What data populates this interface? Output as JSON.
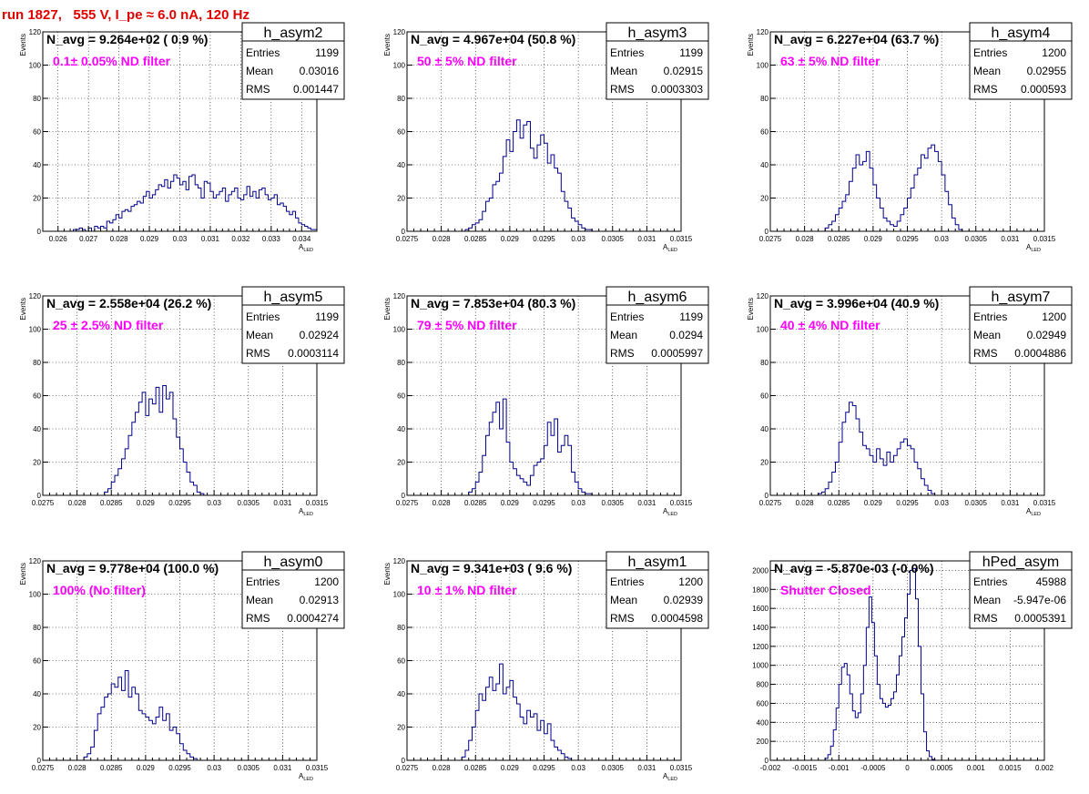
{
  "title": "run 1827,   555 V, I_pe ≈ 6.0 nA, 120 Hz",
  "colors": {
    "title": "#e00000",
    "histogram": "#00008b",
    "filter_text": "#ff00ff",
    "grid": "#000000"
  },
  "stat_labels": {
    "entries": "Entries",
    "mean": "Mean",
    "rms": "RMS"
  },
  "chart_data": [
    {
      "type": "bar",
      "name": "h_asym2",
      "navg_text": "N_avg = 9.264e+02 ( 0.9 %)",
      "filter_text": "0.1± 0.05% ND filter",
      "stats": {
        "entries": "1199",
        "mean": "0.03016",
        "rms": "0.001447"
      },
      "ylabel": "Events",
      "xlabel_main": "A",
      "xlabel_sub": "LED",
      "xlim": [
        0.0255,
        0.0345
      ],
      "ylim": [
        0,
        120
      ],
      "xticks": [
        0.026,
        0.027,
        0.028,
        0.029,
        0.03,
        0.031,
        0.032,
        0.033,
        0.034
      ],
      "xticklabels": [
        "0.026",
        "0.027",
        "0.028",
        "0.029",
        "0.03",
        "0.031",
        "0.032",
        "0.033",
        "0.034"
      ],
      "yticks": [
        0,
        20,
        40,
        60,
        80,
        100,
        120
      ],
      "yticklabels": [
        "0",
        "20",
        "40",
        "60",
        "80",
        "100",
        "120"
      ],
      "bins": {
        "start": 0.0265,
        "width": 0.0001,
        "values": [
          1,
          1,
          2,
          1,
          0,
          2,
          0,
          3,
          2,
          3,
          2,
          6,
          5,
          7,
          10,
          8,
          12,
          13,
          12,
          15,
          16,
          18,
          17,
          21,
          24,
          20,
          22,
          25,
          28,
          27,
          31,
          26,
          30,
          34,
          32,
          28,
          30,
          25,
          33,
          34,
          28,
          26,
          20,
          30,
          29,
          24,
          20,
          22,
          24,
          26,
          18,
          22,
          24,
          26,
          20,
          19,
          22,
          27,
          21,
          24,
          20,
          25,
          26,
          22,
          19,
          20,
          22,
          16,
          17,
          15,
          12,
          10,
          12,
          8,
          5,
          4,
          3,
          2,
          1,
          1
        ]
      }
    },
    {
      "type": "bar",
      "name": "h_asym3",
      "navg_text": "N_avg = 4.967e+04 (50.8 %)",
      "filter_text": "50 ± 5% ND filter",
      "stats": {
        "entries": "1199",
        "mean": "0.02915",
        "rms": "0.0003303"
      },
      "ylabel": "Events",
      "xlabel_main": "A",
      "xlabel_sub": "LED",
      "xlim": [
        0.0275,
        0.0315
      ],
      "ylim": [
        0,
        120
      ],
      "xticks": [
        0.0275,
        0.028,
        0.0285,
        0.029,
        0.0295,
        0.03,
        0.0305,
        0.031,
        0.0315
      ],
      "xticklabels": [
        "0.0275",
        "0.028",
        "0.0285",
        "0.029",
        "0.0295",
        "0.03",
        "0.0305",
        "0.031",
        "0.0315"
      ],
      "yticks": [
        0,
        20,
        40,
        60,
        80,
        100,
        120
      ],
      "yticklabels": [
        "0",
        "20",
        "40",
        "60",
        "80",
        "100",
        "120"
      ],
      "bins": {
        "start": 0.02835,
        "width": 5e-05,
        "values": [
          1,
          2,
          4,
          5,
          7,
          12,
          18,
          20,
          28,
          30,
          35,
          45,
          55,
          48,
          60,
          67,
          56,
          64,
          66,
          50,
          44,
          52,
          58,
          53,
          41,
          46,
          38,
          35,
          24,
          18,
          14,
          8,
          6,
          4,
          2,
          1,
          1
        ]
      }
    },
    {
      "type": "bar",
      "name": "h_asym4",
      "navg_text": "N_avg = 6.227e+04 (63.7 %)",
      "filter_text": "63 ± 5% ND filter",
      "stats": {
        "entries": "1200",
        "mean": "0.02955",
        "rms": "0.000593"
      },
      "ylabel": "Events",
      "xlabel_main": "A",
      "xlabel_sub": "LED",
      "xlim": [
        0.0275,
        0.0315
      ],
      "ylim": [
        0,
        120
      ],
      "xticks": [
        0.0275,
        0.028,
        0.0285,
        0.029,
        0.0295,
        0.03,
        0.0305,
        0.031,
        0.0315
      ],
      "xticklabels": [
        "0.0275",
        "0.028",
        "0.0285",
        "0.029",
        "0.0295",
        "0.03",
        "0.0305",
        "0.031",
        "0.0315"
      ],
      "yticks": [
        0,
        20,
        40,
        60,
        80,
        100,
        120
      ],
      "yticklabels": [
        "0",
        "20",
        "40",
        "60",
        "80",
        "100",
        "120"
      ],
      "bins": {
        "start": 0.0283,
        "width": 5e-05,
        "values": [
          2,
          4,
          6,
          10,
          14,
          18,
          22,
          30,
          38,
          46,
          40,
          42,
          48,
          38,
          28,
          20,
          14,
          8,
          6,
          4,
          3,
          6,
          10,
          14,
          20,
          26,
          34,
          38,
          46,
          44,
          50,
          52,
          48,
          42,
          34,
          24,
          16,
          8,
          4,
          1
        ]
      }
    },
    {
      "type": "bar",
      "name": "h_asym5",
      "navg_text": "N_avg = 2.558e+04 (26.2 %)",
      "filter_text": "25 ± 2.5% ND filter",
      "stats": {
        "entries": "1199",
        "mean": "0.02924",
        "rms": "0.0003114"
      },
      "ylabel": "Events",
      "xlabel_main": "A",
      "xlabel_sub": "LED",
      "xlim": [
        0.0275,
        0.0315
      ],
      "ylim": [
        0,
        120
      ],
      "xticks": [
        0.0275,
        0.028,
        0.0285,
        0.029,
        0.0295,
        0.03,
        0.0305,
        0.031,
        0.0315
      ],
      "xticklabels": [
        "0.0275",
        "0.028",
        "0.0285",
        "0.029",
        "0.0295",
        "0.03",
        "0.0305",
        "0.031",
        "0.0315"
      ],
      "yticks": [
        0,
        20,
        40,
        60,
        80,
        100,
        120
      ],
      "yticklabels": [
        "0",
        "20",
        "40",
        "60",
        "80",
        "100",
        "120"
      ],
      "bins": {
        "start": 0.0284,
        "width": 5e-05,
        "values": [
          2,
          4,
          8,
          12,
          16,
          22,
          28,
          36,
          44,
          50,
          56,
          62,
          48,
          58,
          55,
          65,
          50,
          66,
          58,
          62,
          46,
          35,
          28,
          20,
          14,
          8,
          6,
          2,
          1
        ]
      }
    },
    {
      "type": "bar",
      "name": "h_asym6",
      "navg_text": "N_avg = 7.853e+04 (80.3 %)",
      "filter_text": "79 ± 5% ND filter",
      "stats": {
        "entries": "1199",
        "mean": "0.0294",
        "rms": "0.0005997"
      },
      "ylabel": "Events",
      "xlabel_main": "A",
      "xlabel_sub": "LED",
      "xlim": [
        0.0275,
        0.0315
      ],
      "ylim": [
        0,
        120
      ],
      "xticks": [
        0.0275,
        0.028,
        0.0285,
        0.029,
        0.0295,
        0.03,
        0.0305,
        0.031,
        0.0315
      ],
      "xticklabels": [
        "0.0275",
        "0.028",
        "0.0285",
        "0.029",
        "0.0295",
        "0.03",
        "0.0305",
        "0.031",
        "0.0315"
      ],
      "yticks": [
        0,
        20,
        40,
        60,
        80,
        100,
        120
      ],
      "yticklabels": [
        "0",
        "20",
        "40",
        "60",
        "80",
        "100",
        "120"
      ],
      "bins": {
        "start": 0.0284,
        "width": 5e-05,
        "values": [
          2,
          4,
          8,
          14,
          24,
          36,
          44,
          50,
          56,
          40,
          58,
          32,
          20,
          16,
          12,
          10,
          8,
          6,
          12,
          18,
          20,
          22,
          30,
          44,
          36,
          46,
          26,
          30,
          36,
          30,
          14,
          8,
          4,
          2,
          1,
          1
        ]
      }
    },
    {
      "type": "bar",
      "name": "h_asym7",
      "navg_text": "N_avg = 3.996e+04 (40.9 %)",
      "filter_text": "40 ± 4% ND filter",
      "stats": {
        "entries": "1200",
        "mean": "0.02949",
        "rms": "0.0004886"
      },
      "ylabel": "Events",
      "xlabel_main": "A",
      "xlabel_sub": "LED",
      "xlim": [
        0.0275,
        0.0315
      ],
      "ylim": [
        0,
        120
      ],
      "xticks": [
        0.0275,
        0.028,
        0.0285,
        0.029,
        0.0295,
        0.03,
        0.0305,
        0.031,
        0.0315
      ],
      "xticklabels": [
        "0.0275",
        "0.028",
        "0.0285",
        "0.029",
        "0.0295",
        "0.03",
        "0.0305",
        "0.031",
        "0.0315"
      ],
      "yticks": [
        0,
        20,
        40,
        60,
        80,
        100,
        120
      ],
      "yticklabels": [
        "0",
        "20",
        "40",
        "60",
        "80",
        "100",
        "120"
      ],
      "bins": {
        "start": 0.0282,
        "width": 5e-05,
        "values": [
          1,
          2,
          4,
          8,
          14,
          20,
          32,
          44,
          50,
          56,
          54,
          46,
          38,
          30,
          28,
          24,
          20,
          28,
          22,
          18,
          26,
          20,
          24,
          28,
          32,
          34,
          30,
          28,
          20,
          16,
          10,
          6,
          3,
          1
        ]
      }
    },
    {
      "type": "bar",
      "name": "h_asym0",
      "navg_text": "N_avg = 9.778e+04 (100.0 %)",
      "filter_text": "100% (No filter)",
      "stats": {
        "entries": "1200",
        "mean": "0.02913",
        "rms": "0.0004274"
      },
      "ylabel": "Events",
      "xlabel_main": "A",
      "xlabel_sub": "LED",
      "xlim": [
        0.0275,
        0.0315
      ],
      "ylim": [
        0,
        120
      ],
      "xticks": [
        0.0275,
        0.028,
        0.0285,
        0.029,
        0.0295,
        0.03,
        0.0305,
        0.031,
        0.0315
      ],
      "xticklabels": [
        "0.0275",
        "0.028",
        "0.0285",
        "0.029",
        "0.0295",
        "0.03",
        "0.0305",
        "0.031",
        "0.0315"
      ],
      "yticks": [
        0,
        20,
        40,
        60,
        80,
        100,
        120
      ],
      "yticklabels": [
        "0",
        "20",
        "40",
        "60",
        "80",
        "100",
        "120"
      ],
      "bins": {
        "start": 0.0281,
        "width": 5e-05,
        "values": [
          2,
          4,
          8,
          18,
          28,
          32,
          38,
          40,
          46,
          44,
          50,
          42,
          54,
          38,
          44,
          40,
          30,
          28,
          26,
          24,
          22,
          26,
          32,
          24,
          28,
          18,
          20,
          16,
          10,
          6,
          4,
          2,
          1
        ]
      }
    },
    {
      "type": "bar",
      "name": "h_asym1",
      "navg_text": "N_avg = 9.341e+03 ( 9.6 %)",
      "filter_text": "10 ± 1% ND filter",
      "stats": {
        "entries": "1200",
        "mean": "0.02939",
        "rms": "0.0004598"
      },
      "ylabel": "Events",
      "xlabel_main": "A",
      "xlabel_sub": "LED",
      "xlim": [
        0.0275,
        0.0315
      ],
      "ylim": [
        0,
        120
      ],
      "xticks": [
        0.0275,
        0.028,
        0.0285,
        0.029,
        0.0295,
        0.03,
        0.0305,
        0.031,
        0.0315
      ],
      "xticklabels": [
        "0.0275",
        "0.028",
        "0.0285",
        "0.029",
        "0.0295",
        "0.03",
        "0.0305",
        "0.031",
        "0.0315"
      ],
      "yticks": [
        0,
        20,
        40,
        60,
        80,
        100,
        120
      ],
      "yticklabels": [
        "0",
        "20",
        "40",
        "60",
        "80",
        "100",
        "120"
      ],
      "bins": {
        "start": 0.0283,
        "width": 5e-05,
        "values": [
          2,
          6,
          12,
          20,
          30,
          40,
          36,
          44,
          50,
          42,
          46,
          58,
          40,
          44,
          48,
          38,
          34,
          26,
          22,
          30,
          26,
          28,
          18,
          24,
          16,
          22,
          12,
          8,
          6,
          4,
          2,
          1
        ]
      }
    },
    {
      "type": "bar",
      "name": "hPed_asym",
      "navg_text": "N_avg = -5.870e-03 (-0.0%)",
      "filter_text": "Shutter Closed",
      "stats": {
        "entries": "45988",
        "mean": "-5.947e-06",
        "rms": "0.0005391"
      },
      "ylabel": "",
      "xlabel_main": "",
      "xlabel_sub": "",
      "xlim": [
        -0.002,
        0.002
      ],
      "ylim": [
        0,
        2100
      ],
      "xticks": [
        -0.002,
        -0.0015,
        -0.001,
        -0.0005,
        0,
        0.0005,
        0.001,
        0.0015,
        0.002
      ],
      "xticklabels": [
        "-0.002",
        "-0.0015",
        "-0.001",
        "-0.0005",
        "0",
        "0.0005",
        "0.001",
        "0.0015",
        "0.002"
      ],
      "yticks": [
        0,
        200,
        400,
        600,
        800,
        1000,
        1200,
        1400,
        1600,
        1800,
        2000
      ],
      "yticklabels": [
        "0",
        "200",
        "400",
        "600",
        "800",
        "1000",
        "1200",
        "1400",
        "1600",
        "1800",
        "2000"
      ],
      "bins": {
        "start": -0.0012,
        "width": 4e-05,
        "values": [
          20,
          60,
          150,
          320,
          550,
          800,
          980,
          1020,
          900,
          700,
          520,
          450,
          500,
          700,
          1000,
          1400,
          1720,
          1450,
          1100,
          800,
          650,
          600,
          560,
          580,
          650,
          720,
          900,
          1100,
          1300,
          1500,
          1750,
          2000,
          2020,
          1700,
          1200,
          700,
          300,
          100,
          40,
          10
        ]
      }
    }
  ]
}
